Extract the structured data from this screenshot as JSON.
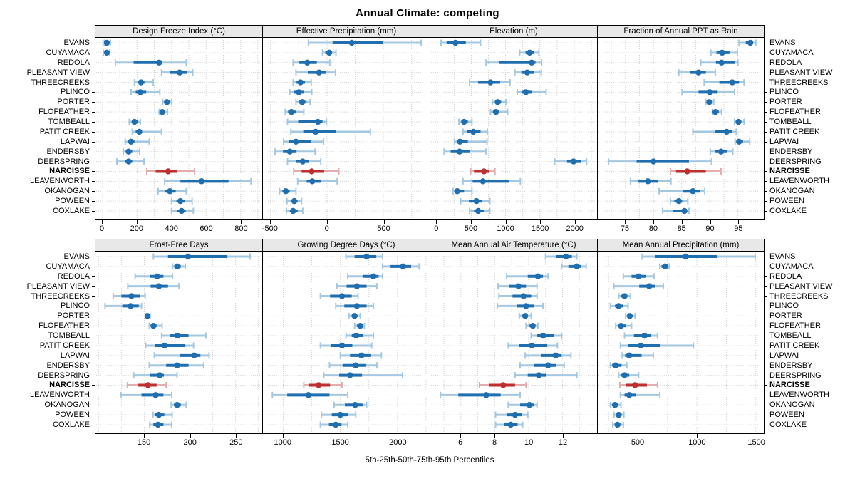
{
  "title": "Annual Climate: competing",
  "caption": "5th-25th-50th-75th-95th Percentiles",
  "colors": {
    "series_blue": "#1f6eb0",
    "series_blue_light": "#a5c8e1",
    "highlight_red": "#be2f2f",
    "highlight_red_light": "#e3adad",
    "strip_bg": "#e8e8e8",
    "grid": "#d0d0d0",
    "border": "#000000"
  },
  "chart_data": {
    "type": "dotplot",
    "layout": {
      "rows": 2,
      "cols": 4
    },
    "percentiles": [
      5,
      25,
      50,
      75,
      95
    ],
    "legend_position": "none",
    "grid": "dotted",
    "highlighted_station": "NARCISSE",
    "stations": [
      "EVANS",
      "CUYAMACA",
      "REDOLA",
      "PLEASANT VIEW",
      "THREECREEKS",
      "PLINCO",
      "PORTER",
      "FLOFEATHER",
      "TOMBEALL",
      "PATIT CREEK",
      "LAPWAI",
      "ENDERSBY",
      "DEERSPRING",
      "NARCISSE",
      "LEAVENWORTH",
      "OKANOGAN",
      "POWEEN",
      "COXLAKE"
    ],
    "panels": [
      {
        "title": "Design Freeze Index (°C)",
        "row": 0,
        "domain": [
          -41,
          921
        ],
        "ticks": [
          0,
          200,
          400,
          600,
          800
        ],
        "tick_labels": [
          "0",
          "200",
          "400",
          "600",
          "800"
        ]
      },
      {
        "title": "Effective Precipitation (mm)",
        "row": 0,
        "domain": [
          -568,
          904
        ],
        "ticks": [
          -500,
          0,
          500
        ],
        "tick_labels": [
          "-500",
          "0",
          "500"
        ]
      },
      {
        "title": "Elevation (m)",
        "row": 0,
        "domain": [
          -96,
          2322
        ],
        "ticks": [
          0,
          500,
          1000,
          1500,
          2000
        ],
        "tick_labels": [
          "0",
          "500",
          "1000",
          "1500",
          "2000"
        ]
      },
      {
        "title": "Fraction of Annual PPT as Rain",
        "row": 0,
        "domain": [
          70.1,
          99.6
        ],
        "ticks": [
          75,
          80,
          85,
          90,
          95
        ],
        "tick_labels": [
          "75",
          "80",
          "85",
          "90",
          "95"
        ]
      },
      {
        "title": "Frost-Free Days",
        "row": 1,
        "domain": [
          96.6,
          278.4
        ],
        "ticks": [
          150,
          200,
          250
        ],
        "tick_labels": [
          "150",
          "200",
          "250"
        ]
      },
      {
        "title": "Growing Degree Days (°C)",
        "row": 1,
        "domain": [
          822,
          2276
        ],
        "ticks": [
          1000,
          1500,
          2000
        ],
        "tick_labels": [
          "1000",
          "1500",
          "2000"
        ]
      },
      {
        "title": "Mean Annual Air Temperature (°C)",
        "row": 1,
        "domain": [
          4.2,
          14.0
        ],
        "ticks": [
          6,
          8,
          10,
          12
        ],
        "tick_labels": [
          "6",
          "8",
          "10",
          "12"
        ]
      },
      {
        "title": "Mean Annual Precipitation (mm)",
        "row": 1,
        "domain": [
          158,
          1568
        ],
        "ticks": [
          500,
          1000,
          1500
        ],
        "tick_labels": [
          "500",
          "1000",
          "1500"
        ]
      }
    ],
    "values": {
      "EVANS": [
        [
          10,
          15,
          25,
          35,
          45
        ],
        [
          -165,
          50,
          220,
          495,
          835
        ],
        [
          60,
          140,
          270,
          420,
          635
        ],
        [
          95.2,
          96.4,
          97.2,
          97.7,
          98.2
        ],
        [
          160,
          176,
          198,
          241,
          266
        ],
        [
          1550,
          1625,
          1730,
          1815,
          1870
        ],
        [
          11.0,
          11.6,
          12.2,
          12.55,
          12.85
        ],
        [
          535,
          645,
          905,
          1175,
          1495
        ]
      ],
      "CUYAMACA": [
        [
          5,
          12,
          25,
          35,
          42
        ],
        [
          -40,
          -15,
          20,
          45,
          80
        ],
        [
          1205,
          1290,
          1350,
          1410,
          1485
        ],
        [
          90.2,
          91.2,
          92.2,
          93.5,
          94.9
        ],
        [
          181,
          183,
          186,
          190,
          195
        ],
        [
          1870,
          1940,
          2050,
          2120,
          2190
        ],
        [
          11.95,
          12.35,
          12.85,
          13.1,
          13.4
        ],
        [
          685,
          700,
          730,
          750,
          765
        ]
      ],
      "REDOLA": [
        [
          74,
          180,
          328,
          345,
          485
        ],
        [
          -300,
          -245,
          -175,
          -90,
          25
        ],
        [
          715,
          900,
          1380,
          1435,
          1525
        ],
        [
          88.4,
          91.1,
          92.1,
          94.4,
          95.0
        ],
        [
          140,
          156,
          164,
          171,
          181
        ],
        [
          1565,
          1695,
          1790,
          1835,
          1870
        ],
        [
          8.7,
          9.95,
          10.55,
          10.85,
          11.15
        ],
        [
          375,
          445,
          505,
          565,
          635
        ]
      ],
      "PLEASANT VIEW": [
        [
          342,
          390,
          447,
          488,
          523
        ],
        [
          -275,
          -170,
          -70,
          -10,
          75
        ],
        [
          1135,
          1230,
          1315,
          1410,
          1520
        ],
        [
          84.5,
          86.5,
          88.0,
          89.3,
          91.0
        ],
        [
          132,
          157,
          166,
          176,
          188
        ],
        [
          1470,
          1555,
          1645,
          1730,
          1820
        ],
        [
          8.2,
          8.85,
          9.4,
          9.85,
          10.5
        ],
        [
          295,
          510,
          595,
          645,
          715
        ]
      ],
      "THREECREEKS": [
        [
          185,
          203,
          223,
          243,
          294
        ],
        [
          -300,
          -270,
          -235,
          -195,
          -140
        ],
        [
          475,
          600,
          780,
          920,
          1065
        ],
        [
          89.0,
          91.7,
          94.0,
          95.2,
          96.1
        ],
        [
          116,
          125,
          136,
          145,
          151
        ],
        [
          1325,
          1410,
          1515,
          1600,
          1655
        ],
        [
          8.25,
          9.05,
          9.7,
          10.15,
          10.5
        ],
        [
          335,
          355,
          385,
          410,
          435
        ]
      ],
      "PLINCO": [
        [
          165,
          192,
          219,
          253,
          332
        ],
        [
          -330,
          -295,
          -250,
          -205,
          -135
        ],
        [
          1170,
          1240,
          1295,
          1380,
          1590
        ],
        [
          85.1,
          88.0,
          90.0,
          91.4,
          94.4
        ],
        [
          107,
          126,
          135,
          144,
          147
        ],
        [
          1460,
          1535,
          1645,
          1730,
          1790
        ],
        [
          8.15,
          9.3,
          9.85,
          10.3,
          10.85
        ],
        [
          265,
          305,
          335,
          375,
          415
        ]
      ],
      "PORTER": [
        [
          349,
          360,
          373,
          390,
          400
        ],
        [
          -275,
          -250,
          -220,
          -190,
          -150
        ],
        [
          805,
          845,
          885,
          935,
          1005
        ],
        [
          89.3,
          89.6,
          89.9,
          90.3,
          90.7
        ],
        [
          151,
          152.5,
          153.5,
          155,
          156.5
        ],
        [
          1575,
          1600,
          1625,
          1650,
          1675
        ],
        [
          9.45,
          9.6,
          9.8,
          9.95,
          10.15
        ],
        [
          395,
          410,
          430,
          450,
          475
        ]
      ],
      "FLOFEATHER": [
        [
          328,
          335,
          346,
          362,
          376
        ],
        [
          -370,
          -345,
          -315,
          -275,
          -205
        ],
        [
          780,
          815,
          860,
          900,
          1030
        ],
        [
          90.5,
          90.7,
          91.0,
          91.6,
          92.1
        ],
        [
          155.5,
          157.5,
          160,
          163.5,
          169.5
        ],
        [
          1625,
          1645,
          1675,
          1695,
          1710
        ],
        [
          9.85,
          10.05,
          10.25,
          10.4,
          10.55
        ],
        [
          310,
          330,
          355,
          395,
          445
        ]
      ],
      "TOMBEALL": [
        [
          155,
          172,
          185,
          203,
          219
        ],
        [
          -350,
          -255,
          -80,
          -40,
          -5
        ],
        [
          320,
          355,
          395,
          450,
          510
        ],
        [
          94.4,
          94.7,
          95.1,
          95.6,
          96.1
        ],
        [
          169,
          178,
          186.5,
          198.5,
          217.5
        ],
        [
          1550,
          1600,
          1640,
          1700,
          1790
        ],
        [
          10.15,
          10.5,
          10.85,
          11.5,
          11.95
        ],
        [
          385,
          465,
          555,
          610,
          665
        ]
      ],
      "PATIT CREEK": [
        [
          172,
          192,
          213,
          226,
          342
        ],
        [
          -320,
          -210,
          -100,
          80,
          385
        ],
        [
          380,
          440,
          530,
          635,
          735
        ],
        [
          87.0,
          91.0,
          93.0,
          93.9,
          94.7
        ],
        [
          151.5,
          162,
          172,
          195,
          204
        ],
        [
          1325,
          1420,
          1515,
          1605,
          1775
        ],
        [
          8.8,
          9.45,
          10.2,
          11.1,
          11.7
        ],
        [
          350,
          415,
          525,
          690,
          970
        ]
      ],
      "LAPWAI": [
        [
          131,
          147,
          165,
          185,
          271
        ],
        [
          -385,
          -335,
          -275,
          -140,
          -30
        ],
        [
          255,
          290,
          335,
          450,
          730
        ],
        [
          94.5,
          94.8,
          95.2,
          95.9,
          97.1
        ],
        [
          161,
          189,
          204.5,
          211.5,
          221
        ],
        [
          1500,
          1585,
          1685,
          1770,
          1860
        ],
        [
          9.8,
          10.75,
          11.6,
          11.95,
          12.5
        ],
        [
          365,
          390,
          425,
          530,
          630
        ]
      ],
      "ENDERSBY": [
        [
          120,
          134,
          151,
          172,
          215
        ],
        [
          -460,
          -390,
          -330,
          -270,
          -105
        ],
        [
          105,
          200,
          330,
          485,
          715
        ],
        [
          90.1,
          91.0,
          92.0,
          93.1,
          94.1
        ],
        [
          155.5,
          174,
          186,
          198.5,
          215
        ],
        [
          1405,
          1520,
          1635,
          1720,
          1820
        ],
        [
          9.5,
          10.3,
          11.15,
          11.6,
          12.1
        ],
        [
          265,
          280,
          310,
          360,
          405
        ]
      ],
      "DEERSPRING": [
        [
          83,
          131,
          151,
          172,
          240
        ],
        [
          -350,
          -275,
          -215,
          -160,
          -55
        ],
        [
          1715,
          1895,
          1990,
          2095,
          2180
        ],
        [
          72.0,
          77.0,
          80.0,
          86.3,
          90.3
        ],
        [
          138.5,
          156,
          167,
          171.5,
          186
        ],
        [
          1355,
          1490,
          1585,
          1690,
          2045
        ],
        [
          9.2,
          9.95,
          10.6,
          11.05,
          12.85
        ],
        [
          335,
          355,
          385,
          425,
          505
        ]
      ],
      "NARCISSE": [
        [
          256,
          308,
          380,
          431,
          533
        ],
        [
          -295,
          -225,
          -135,
          -25,
          105
        ],
        [
          490,
          540,
          685,
          765,
          845
        ],
        [
          83.0,
          84.0,
          86.0,
          89.3,
          92.0
        ],
        [
          131.5,
          143.5,
          154,
          163.5,
          174
        ],
        [
          1180,
          1225,
          1310,
          1410,
          1515
        ],
        [
          7.1,
          7.65,
          8.5,
          9.2,
          9.85
        ],
        [
          345,
          395,
          475,
          575,
          665
        ]
      ],
      "LEAVENWORTH": [
        [
          360,
          451,
          574,
          730,
          860
        ],
        [
          -260,
          -180,
          -130,
          -55,
          90
        ],
        [
          380,
          520,
          670,
          1055,
          1215
        ],
        [
          75.9,
          77.2,
          79.0,
          80.8,
          83.1
        ],
        [
          124.5,
          147,
          162.5,
          171,
          180
        ],
        [
          905,
          1035,
          1220,
          1405,
          1565
        ],
        [
          4.8,
          5.85,
          7.5,
          8.35,
          9.5
        ],
        [
          350,
          385,
          425,
          485,
          685
        ]
      ],
      "OKANOGAN": [
        [
          322,
          362,
          390,
          424,
          485
        ],
        [
          -420,
          -395,
          -365,
          -330,
          -275
        ],
        [
          235,
          260,
          295,
          395,
          510
        ],
        [
          81.0,
          85.3,
          87.0,
          88.2,
          89.1
        ],
        [
          179.5,
          182.5,
          186,
          190,
          196
        ],
        [
          1445,
          1540,
          1630,
          1695,
          1730
        ],
        [
          8.8,
          9.5,
          10.05,
          10.3,
          10.5
        ],
        [
          265,
          280,
          305,
          330,
          355
        ]
      ],
      "POWEEN": [
        [
          400,
          428,
          451,
          476,
          519
        ],
        [
          -355,
          -320,
          -290,
          -260,
          -225
        ],
        [
          345,
          465,
          575,
          660,
          770
        ],
        [
          83.0,
          83.7,
          84.5,
          85.1,
          86.1
        ],
        [
          159.5,
          162,
          166,
          172,
          180.5
        ],
        [
          1335,
          1425,
          1500,
          1565,
          1635
        ],
        [
          8.05,
          8.7,
          9.2,
          9.6,
          9.95
        ],
        [
          295,
          315,
          335,
          360,
          380
        ]
      ],
      "COXLAKE": [
        [
          400,
          430,
          458,
          482,
          526
        ],
        [
          -360,
          -330,
          -300,
          -260,
          -215
        ],
        [
          475,
          540,
          600,
          690,
          770
        ],
        [
          81.6,
          83.5,
          85.5,
          86.0,
          86.3
        ],
        [
          156,
          160,
          165,
          171,
          180
        ],
        [
          1325,
          1400,
          1460,
          1510,
          1565
        ],
        [
          8.05,
          8.55,
          8.95,
          9.35,
          9.65
        ],
        [
          285,
          305,
          325,
          350,
          375
        ]
      ]
    }
  }
}
